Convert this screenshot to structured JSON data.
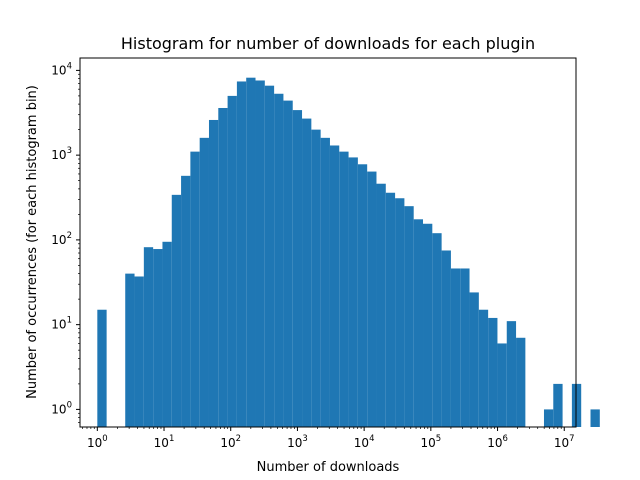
{
  "chart_data": {
    "type": "bar",
    "title": "Histogram for number of downloads for each plugin",
    "xlabel": "Number of downloads",
    "ylabel": "Number of occurrences (for each histogram bin)",
    "xscale": "log",
    "yscale": "log",
    "xlim": [
      0.55,
      15000000
    ],
    "ylim": [
      0.62,
      14000
    ],
    "grid": false,
    "legend": "none",
    "bar_color": "#1f77b4",
    "x_ticks": [
      {
        "value": 1,
        "base": "10",
        "exp": "0"
      },
      {
        "value": 10,
        "base": "10",
        "exp": "1"
      },
      {
        "value": 100,
        "base": "10",
        "exp": "2"
      },
      {
        "value": 1000,
        "base": "10",
        "exp": "3"
      },
      {
        "value": 10000,
        "base": "10",
        "exp": "4"
      },
      {
        "value": 100000,
        "base": "10",
        "exp": "5"
      },
      {
        "value": 1000000,
        "base": "10",
        "exp": "6"
      },
      {
        "value": 10000000,
        "base": "10",
        "exp": "7"
      }
    ],
    "y_ticks": [
      {
        "value": 1,
        "base": "10",
        "exp": "0"
      },
      {
        "value": 10,
        "base": "10",
        "exp": "1"
      },
      {
        "value": 100,
        "base": "10",
        "exp": "2"
      },
      {
        "value": 1000,
        "base": "10",
        "exp": "3"
      },
      {
        "value": 10000,
        "base": "10",
        "exp": "4"
      }
    ],
    "bins": {
      "log10_start": 0.0,
      "log10_width": 0.1395,
      "counts": [
        15,
        0,
        0,
        40,
        37,
        82,
        78,
        95,
        340,
        570,
        1100,
        1600,
        2600,
        3600,
        5000,
        7400,
        8200,
        7600,
        6600,
        5300,
        4400,
        3400,
        2700,
        2000,
        1600,
        1300,
        1100,
        940,
        780,
        640,
        460,
        360,
        310,
        250,
        175,
        155,
        120,
        75,
        46,
        46,
        24,
        15,
        12,
        6,
        11,
        7,
        0,
        0,
        1,
        2,
        0,
        2,
        0,
        1
      ]
    }
  }
}
